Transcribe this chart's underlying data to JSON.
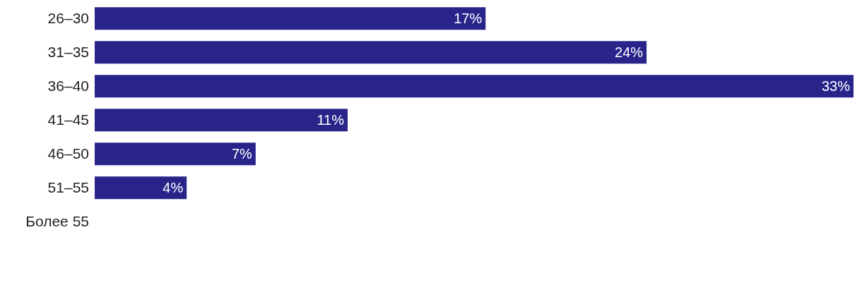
{
  "chart_data": {
    "type": "bar",
    "orientation": "horizontal",
    "categories": [
      "26–30",
      "31–35",
      "36–40",
      "41–45",
      "46–50",
      "51–55",
      "Более 55"
    ],
    "values": [
      17,
      24,
      33,
      11,
      7,
      4,
      null
    ],
    "value_labels": [
      "17%",
      "24%",
      "33%",
      "11%",
      "7%",
      "4%",
      null
    ],
    "color": "#29248a",
    "grid": false,
    "legend": false
  }
}
